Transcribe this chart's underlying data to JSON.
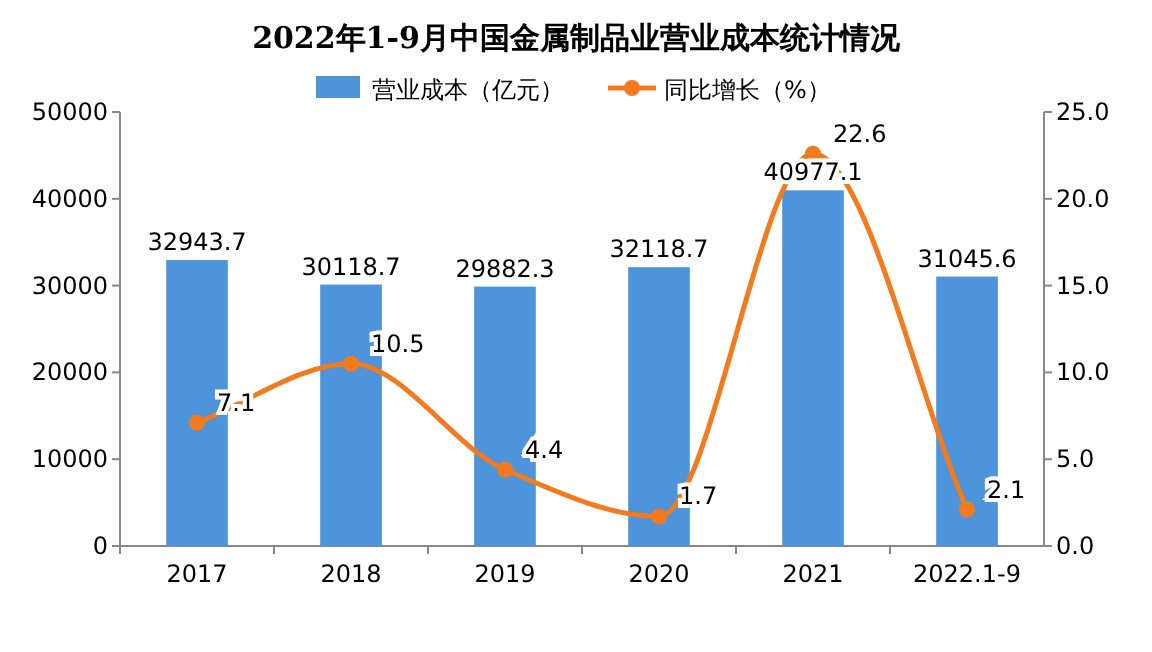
{
  "chart_data": {
    "type": "bar",
    "title": "2022年1-9月中国金属制品业营业成本统计情况",
    "categories": [
      "2017",
      "2018",
      "2019",
      "2020",
      "2021",
      "2022.1-9"
    ],
    "series": [
      {
        "name": "营业成本（亿元）",
        "color": "#4d94da",
        "values": [
          32943.7,
          30118.7,
          29882.3,
          32118.7,
          40977.1,
          31045.6
        ]
      },
      {
        "name": "同比增长（%）",
        "type": "line",
        "axis": "y2",
        "color": "#f37b1d",
        "values": [
          7.1,
          10.5,
          4.4,
          1.7,
          22.6,
          2.1
        ]
      }
    ],
    "ylim": [
      0,
      50000
    ],
    "yticks": [
      0,
      10000,
      20000,
      30000,
      40000,
      50000
    ],
    "y2lim": [
      0,
      25
    ],
    "y2ticks": [
      {
        "value": 0,
        "label": "0.0"
      },
      {
        "value": 5,
        "label": "5.0"
      },
      {
        "value": 10,
        "label": "10.0"
      },
      {
        "value": 15,
        "label": "15.0"
      },
      {
        "value": 20,
        "label": "20.0"
      },
      {
        "value": 25,
        "label": "25.0"
      }
    ],
    "data_labels": true,
    "legend": "top",
    "marker": "circle",
    "grid": false
  }
}
